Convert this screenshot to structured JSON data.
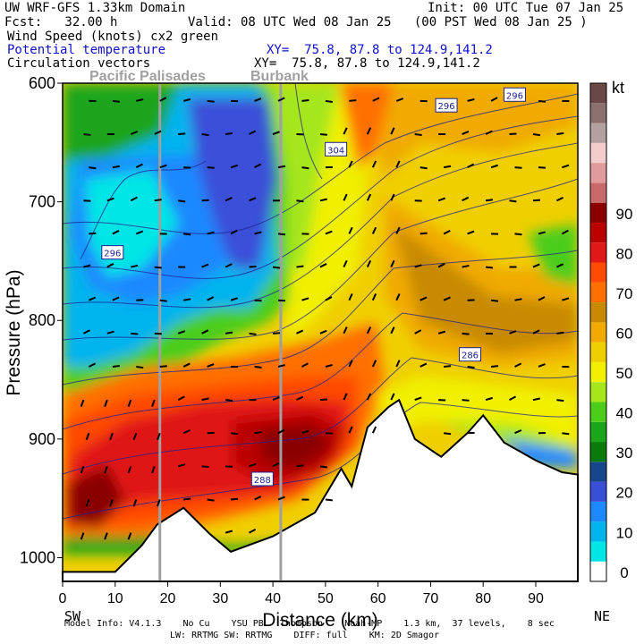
{
  "header": {
    "left1": "UW WRF-GFS 1.33km Domain",
    "left2": "Fcst:   32.00 h",
    "init": "Init: 00 UTC Tue 07 Jan 25",
    "valid": "Valid: 08 UTC Wed 08 Jan 25   (00 PST Wed 08 Jan 25 )",
    "line3": "Wind Speed (knots) cx2 green",
    "line4": "Potential temperature",
    "line4_xy": "XY=  75.8, 87.8 to 124.9,141.2",
    "line5": "Circulation vectors",
    "line5_xy": "XY=  75.8, 87.8 to 124.9,141.2"
  },
  "places": [
    "Pacific Palisades",
    "Burbank"
  ],
  "footer": {
    "sw": "SW",
    "ne": "NE",
    "line1": "Model Info: V4.1.3    No Cu    YSU PBL  Thompson    Noah-MP    1.3 km,  37 levels,    8 sec",
    "line2": "LW: RRTMG SW: RRTMG    DIFF: full    KM: 2D Smagor"
  },
  "chart_data": {
    "type": "heatmap",
    "xlabel": "Distance (km)",
    "ylabel": "Pressure (hPa)",
    "xlim": [
      0,
      98
    ],
    "ylim": [
      1020,
      600
    ],
    "xticks": [
      0,
      10,
      20,
      30,
      40,
      50,
      60,
      70,
      80,
      90
    ],
    "yticks": [
      600,
      700,
      800,
      900,
      1000
    ],
    "vertical_lines_km": [
      18.5,
      41.5
    ],
    "colorbar": {
      "title": "kt",
      "ticks": [
        0,
        10,
        20,
        30,
        40,
        50,
        60,
        70,
        80,
        90
      ],
      "colors": [
        "#ffffff",
        "#00e5e5",
        "#00b4ee",
        "#1e88ff",
        "#3a4fd8",
        "#18468c",
        "#0a7a0a",
        "#1aa51a",
        "#4ccd1a",
        "#a6e61a",
        "#f0f000",
        "#f0cf00",
        "#f0aa00",
        "#c88a00",
        "#ff7000",
        "#ff4a00",
        "#e01818",
        "#ba0000",
        "#8a0000",
        "#c86a6a",
        "#e09c9c",
        "#f3cccc",
        "#b4a0a0",
        "#8c7070",
        "#6a4848"
      ]
    },
    "theta_labels": [
      {
        "value": 296,
        "x_km": 9.5,
        "p": 743
      },
      {
        "value": 304,
        "x_km": 52,
        "p": 656
      },
      {
        "value": 296,
        "x_km": 73,
        "p": 619
      },
      {
        "value": 296,
        "x_km": 86,
        "p": 610
      },
      {
        "value": 286,
        "x_km": 77.5,
        "p": 829
      },
      {
        "value": 288,
        "x_km": 38,
        "p": 934
      }
    ],
    "terrain_p": [
      [
        0,
        1012
      ],
      [
        10,
        1012
      ],
      [
        15,
        990
      ],
      [
        18,
        972
      ],
      [
        23,
        958
      ],
      [
        28,
        980
      ],
      [
        32,
        995
      ],
      [
        40,
        982
      ],
      [
        48,
        962
      ],
      [
        53,
        925
      ],
      [
        55,
        940
      ],
      [
        58,
        890
      ],
      [
        62,
        873
      ],
      [
        64,
        867
      ],
      [
        67,
        900
      ],
      [
        72,
        915
      ],
      [
        77,
        895
      ],
      [
        80,
        880
      ],
      [
        84,
        903
      ],
      [
        90,
        918
      ],
      [
        95,
        928
      ],
      [
        98,
        930
      ]
    ]
  }
}
